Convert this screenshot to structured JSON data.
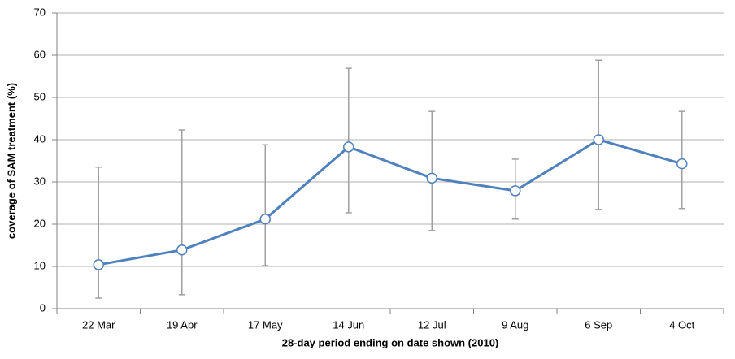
{
  "chart_data": {
    "type": "line",
    "x_label": "28-day period ending on date shown (2010)",
    "y_label": "coverage of SAM treatment (%)",
    "categories": [
      "22 Mar",
      "19 Apr",
      "17 May",
      "14 Jun",
      "12 Jul",
      "9 Aug",
      "6 Sep",
      "4 Oct"
    ],
    "values": [
      10.4,
      13.9,
      21.2,
      38.3,
      30.9,
      27.9,
      40.0,
      34.3
    ],
    "error_plus": [
      23.1,
      28.4,
      17.6,
      18.6,
      15.8,
      7.5,
      18.8,
      12.4
    ],
    "error_minus": [
      7.9,
      10.6,
      11.0,
      15.6,
      12.4,
      6.7,
      16.5,
      10.6
    ],
    "color": "#4f81bd",
    "error_color": "#a0a0a0",
    "ylim": [
      0,
      70
    ],
    "yticks": [
      0,
      10,
      20,
      30,
      40,
      50,
      60,
      70
    ],
    "grid": true
  }
}
